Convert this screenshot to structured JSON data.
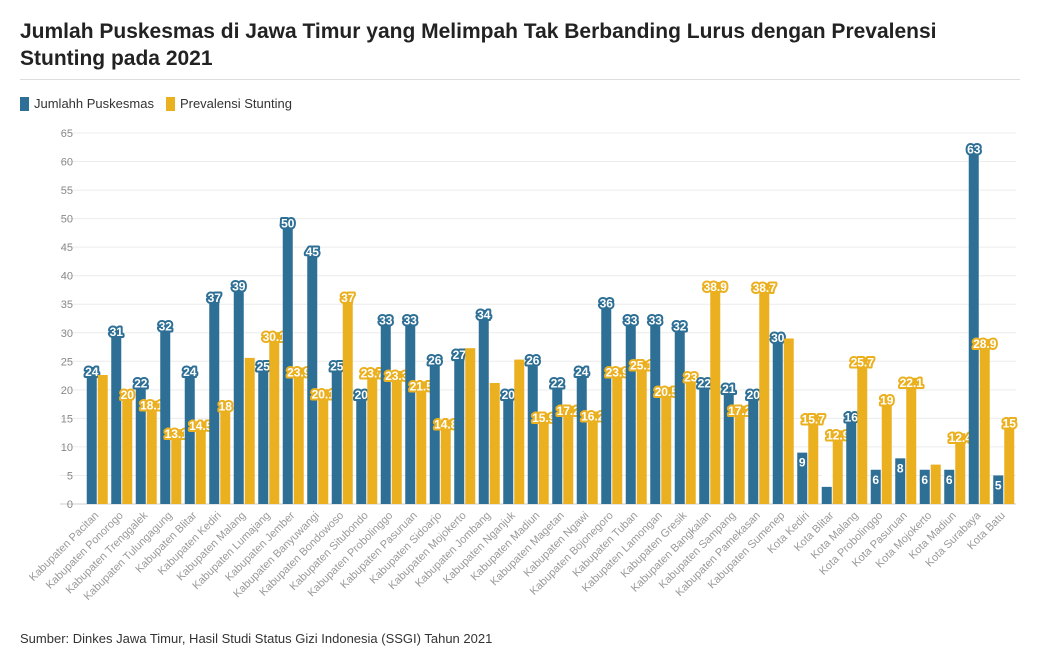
{
  "title": "Jumlah Puskesmas di Jawa Timur yang Melimpah Tak Berbanding Lurus dengan Prevalensi Stunting pada 2021",
  "source": "Sumber: Dinkes Jawa Timur, Hasil Studi Status Gizi Indonesia (SSGI) Tahun 2021",
  "chart_data": {
    "type": "bar",
    "title": "Jumlah Puskesmas di Jawa Timur yang Melimpah Tak Berbanding Lurus dengan Prevalensi Stunting pada 2021",
    "xlabel": "",
    "ylabel": "",
    "ylim": [
      0,
      65
    ],
    "yticks": [
      0,
      5,
      10,
      15,
      20,
      25,
      30,
      35,
      40,
      45,
      50,
      55,
      60,
      65
    ],
    "grid": true,
    "legend": "top-left",
    "categories": [
      "Kabupaten Pacitan",
      "Kabupaten Ponorogo",
      "Kabupaten Trenggalek",
      "Kabupaten Tulungagung",
      "Kabupaten Blitar",
      "Kabupaten Kediri",
      "Kabupaten Malang",
      "Kabupaten Lumajang",
      "Kabupaten Jember",
      "Kabupaten Banyuwangi",
      "Kabupaten Bondowoso",
      "Kabupaten Situbondo",
      "Kabupaten Probolinggo",
      "Kabupaten Pasuruan",
      "Kabupaten Sidoarjo",
      "Kabupaten Mojokerto",
      "Kabupaten Jombang",
      "Kabupaten Nganjuk",
      "Kabupaten Madiun",
      "Kabupaten Magetan",
      "Kabupaten Ngawi",
      "Kabupaten Bojonegoro",
      "Kabupaten Tuban",
      "Kabupaten Lamongan",
      "Kabupaten Gresik",
      "Kabupaten Bangkalan",
      "Kabupaten Sampang",
      "Kabupaten Pamekasan",
      "Kabupaten Sumenep",
      "Kota Kediri",
      "Kota Blitar",
      "Kota Malang",
      "Kota Probolinggo",
      "Kota Pasuruan",
      "Kota Mojokerto",
      "Kota Madiun",
      "Kota Surabaya",
      "Kota Batu"
    ],
    "series": [
      {
        "name": "Jumlahh Puskesmas",
        "color": "#2e6f96",
        "values": [
          24,
          31,
          22,
          32,
          24,
          37,
          39,
          25,
          50,
          45,
          25,
          20,
          33,
          33,
          26,
          27,
          34,
          20,
          26,
          22,
          24,
          36,
          33,
          33,
          32,
          22,
          21,
          20,
          30,
          9,
          3,
          16,
          6,
          8,
          6,
          6,
          63,
          5
        ],
        "labeled": [
          true,
          true,
          true,
          true,
          true,
          true,
          true,
          true,
          true,
          true,
          true,
          true,
          true,
          true,
          true,
          true,
          true,
          true,
          true,
          true,
          true,
          true,
          true,
          true,
          true,
          true,
          true,
          true,
          true,
          true,
          true,
          true,
          true,
          true,
          true,
          true,
          true,
          true
        ]
      },
      {
        "name": "Prevalensi Stunting",
        "color": "#ebb01f",
        "values": [
          22.6,
          20,
          18.1,
          13.1,
          14.5,
          18,
          25.6,
          30.1,
          23.9,
          20.1,
          37,
          23.7,
          23.3,
          21.5,
          14.8,
          27.3,
          21.2,
          25.3,
          15.9,
          17.2,
          16.2,
          23.9,
          25.1,
          20.5,
          23,
          38.9,
          17.2,
          38.7,
          29,
          15.7,
          12.9,
          25.7,
          19,
          22.1,
          6.9,
          12.4,
          28.9,
          15
        ],
        "labeled": [
          false,
          true,
          true,
          true,
          true,
          true,
          false,
          true,
          true,
          true,
          true,
          true,
          true,
          true,
          true,
          false,
          false,
          false,
          true,
          true,
          true,
          true,
          true,
          true,
          true,
          true,
          true,
          true,
          false,
          true,
          true,
          true,
          true,
          true,
          false,
          true,
          true,
          true
        ]
      }
    ]
  }
}
